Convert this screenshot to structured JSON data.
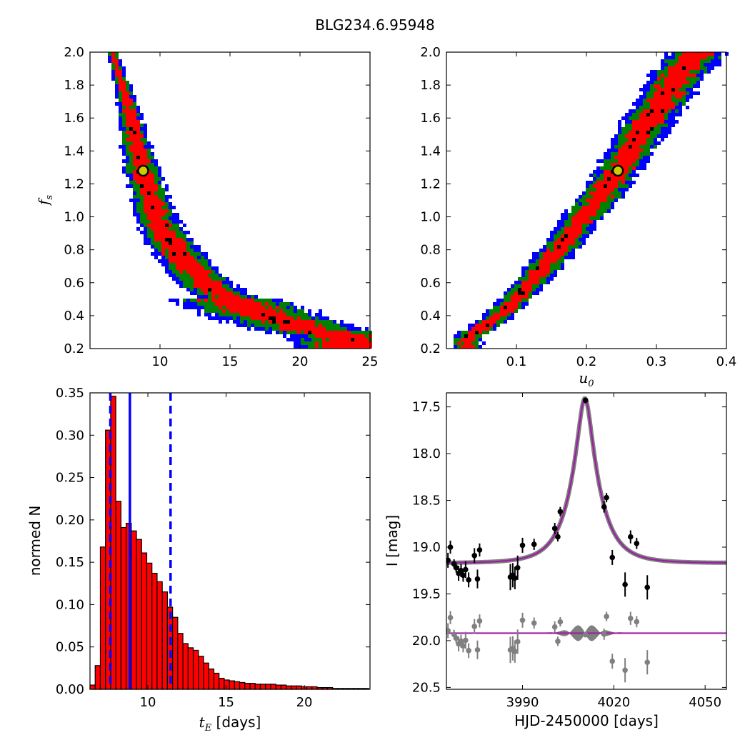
{
  "figure": {
    "title": "BLG234.6.95948"
  },
  "chart_data": [
    {
      "id": "tE-fs",
      "type": "heatmap",
      "ylabel": "f_s",
      "xlabel": "",
      "xlim": [
        5,
        25
      ],
      "ylim": [
        0.2,
        2.0
      ],
      "xticks": [
        "10",
        "15",
        "20",
        "25"
      ],
      "yticks": [
        "0.2",
        "0.4",
        "0.6",
        "0.8",
        "1.0",
        "1.2",
        "1.4",
        "1.6",
        "1.8",
        "2.0"
      ],
      "contour_colors": {
        "outer": "#0000ff",
        "middle": "#008000",
        "inner": "#ff0000",
        "densest": "#000000"
      },
      "ridge": [
        [
          6.6,
          2.0
        ],
        [
          7.3,
          1.8
        ],
        [
          7.9,
          1.6
        ],
        [
          8.4,
          1.4
        ],
        [
          9.0,
          1.2
        ],
        [
          9.7,
          1.0
        ],
        [
          10.7,
          0.85
        ],
        [
          11.8,
          0.72
        ],
        [
          13.2,
          0.6
        ],
        [
          15.0,
          0.5
        ],
        [
          17.5,
          0.4
        ],
        [
          20.5,
          0.32
        ],
        [
          23.5,
          0.27
        ]
      ],
      "best_fit": [
        8.8,
        1.28
      ]
    },
    {
      "id": "u0-fs",
      "type": "heatmap",
      "xlabel": "u_0",
      "ylabel": "",
      "xlim": [
        0.0,
        0.4
      ],
      "ylim": [
        0.2,
        2.0
      ],
      "xticks": [
        "0.1",
        "0.2",
        "0.3",
        "0.4"
      ],
      "yticks": [
        "0.2",
        "0.4",
        "0.6",
        "0.8",
        "1.0",
        "1.2",
        "1.4",
        "1.6",
        "1.8",
        "2.0"
      ],
      "contour_colors": {
        "outer": "#0000ff",
        "middle": "#008000",
        "inner": "#ff0000",
        "densest": "#000000"
      },
      "ridge": [
        [
          0.03,
          0.27
        ],
        [
          0.07,
          0.38
        ],
        [
          0.1,
          0.5
        ],
        [
          0.13,
          0.65
        ],
        [
          0.16,
          0.8
        ],
        [
          0.19,
          0.97
        ],
        [
          0.22,
          1.12
        ],
        [
          0.245,
          1.28
        ],
        [
          0.27,
          1.45
        ],
        [
          0.3,
          1.65
        ],
        [
          0.33,
          1.85
        ],
        [
          0.36,
          2.0
        ]
      ],
      "best_fit": [
        0.245,
        1.28
      ]
    },
    {
      "id": "tE-hist",
      "type": "bar",
      "xlabel": "t_E [days]",
      "ylabel": "normed N",
      "xlim": [
        6.3,
        24.2
      ],
      "ylim": [
        0.0,
        0.35
      ],
      "xticks": [
        "10",
        "15",
        "20"
      ],
      "yticks": [
        "0.00",
        "0.05",
        "0.10",
        "0.15",
        "0.20",
        "0.25",
        "0.30",
        "0.35"
      ],
      "bin_width": 0.33,
      "bin_start": 6.3,
      "values": [
        0.005,
        0.028,
        0.168,
        0.306,
        0.346,
        0.222,
        0.191,
        0.196,
        0.187,
        0.177,
        0.161,
        0.149,
        0.137,
        0.127,
        0.115,
        0.097,
        0.085,
        0.066,
        0.054,
        0.049,
        0.046,
        0.039,
        0.031,
        0.024,
        0.019,
        0.013,
        0.011,
        0.01,
        0.009,
        0.008,
        0.007,
        0.007,
        0.006,
        0.006,
        0.006,
        0.006,
        0.005,
        0.005,
        0.004,
        0.004,
        0.004,
        0.003,
        0.003,
        0.003,
        0.002,
        0.002,
        0.002,
        0.001,
        0.001,
        0.001,
        0.001,
        0.001,
        0.001,
        0.001
      ],
      "median": 8.85,
      "lower": 7.6,
      "upper": 11.45,
      "bar_color": "#ff0000",
      "line_color": "#0000ff"
    },
    {
      "id": "lightcurve",
      "type": "scatter",
      "xlabel": "HJD-2450000 [days]",
      "ylabel": "I [mag]",
      "xlim": [
        3965,
        4057
      ],
      "ylim": [
        20.52,
        17.35
      ],
      "xticks": [
        "3990",
        "4020",
        "4050"
      ],
      "yticks": [
        "17.5",
        "18.0",
        "18.5",
        "19.0",
        "19.5",
        "20.0",
        "20.5"
      ],
      "model": {
        "t0": 4010.5,
        "u0": 0.245,
        "tE": 8.8,
        "baseline": 19.17,
        "fs": 1.28
      },
      "points": [
        {
          "x": 3965.5,
          "y": 19.14,
          "e": 0.08
        },
        {
          "x": 3966.3,
          "y": 19.0,
          "e": 0.07
        },
        {
          "x": 3967.5,
          "y": 19.18,
          "e": 0.05
        },
        {
          "x": 3968.2,
          "y": 19.22,
          "e": 0.05
        },
        {
          "x": 3969.0,
          "y": 19.28,
          "e": 0.08
        },
        {
          "x": 3969.8,
          "y": 19.25,
          "e": 0.07
        },
        {
          "x": 3970.5,
          "y": 19.3,
          "e": 0.07
        },
        {
          "x": 3971.3,
          "y": 19.24,
          "e": 0.09
        },
        {
          "x": 3972.3,
          "y": 19.35,
          "e": 0.08
        },
        {
          "x": 3974.2,
          "y": 19.09,
          "e": 0.08
        },
        {
          "x": 3975.2,
          "y": 19.34,
          "e": 0.1
        },
        {
          "x": 3975.9,
          "y": 19.03,
          "e": 0.07
        },
        {
          "x": 3986.0,
          "y": 19.32,
          "e": 0.14
        },
        {
          "x": 3986.8,
          "y": 19.3,
          "e": 0.13
        },
        {
          "x": 3987.5,
          "y": 19.33,
          "e": 0.12
        },
        {
          "x": 3988.4,
          "y": 19.22,
          "e": 0.13
        },
        {
          "x": 3990.0,
          "y": 18.98,
          "e": 0.08
        },
        {
          "x": 3993.8,
          "y": 18.97,
          "e": 0.06
        },
        {
          "x": 4000.6,
          "y": 18.8,
          "e": 0.06
        },
        {
          "x": 4001.6,
          "y": 18.89,
          "e": 0.05
        },
        {
          "x": 4002.4,
          "y": 18.62,
          "e": 0.05
        },
        {
          "x": 4010.7,
          "y": 17.43,
          "e": 0.03
        },
        {
          "x": 4016.8,
          "y": 18.57,
          "e": 0.06
        },
        {
          "x": 4017.6,
          "y": 18.47,
          "e": 0.05
        },
        {
          "x": 4019.5,
          "y": 19.11,
          "e": 0.08
        },
        {
          "x": 4023.7,
          "y": 19.4,
          "e": 0.13
        },
        {
          "x": 4025.5,
          "y": 18.89,
          "e": 0.07
        },
        {
          "x": 4027.5,
          "y": 18.96,
          "e": 0.06
        },
        {
          "x": 4031.0,
          "y": 19.43,
          "e": 0.13
        }
      ],
      "residual_offset": 19.92,
      "colors": {
        "model": "#9b1fa3",
        "model_band": "#808080",
        "points": "#000000",
        "residuals": "#808080"
      }
    }
  ]
}
